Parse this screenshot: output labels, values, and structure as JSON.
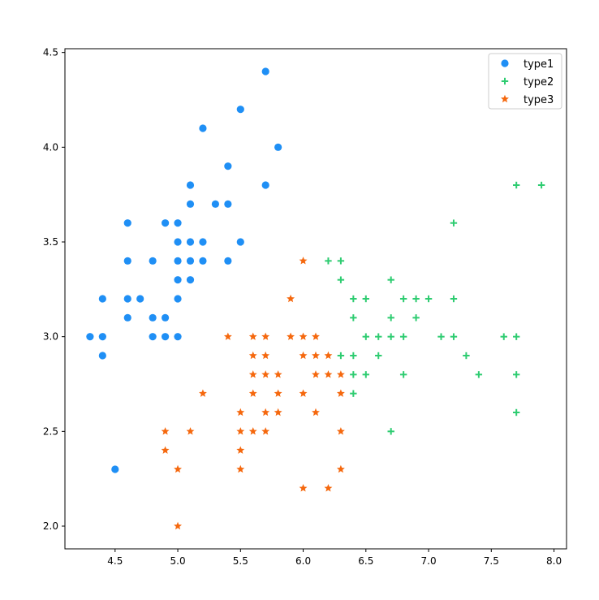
{
  "chart_data": {
    "type": "scatter",
    "title": "",
    "xlabel": "",
    "ylabel": "",
    "xlim": [
      4.1,
      8.1
    ],
    "ylim": [
      1.88,
      4.52
    ],
    "xticks": [
      "4.5",
      "5.0",
      "5.5",
      "6.0",
      "6.5",
      "7.0",
      "7.5",
      "8.0"
    ],
    "yticks": [
      "2.0",
      "2.5",
      "3.0",
      "3.5",
      "4.0",
      "4.5"
    ],
    "grid": false,
    "legend_position": "top-right",
    "series": [
      {
        "name": "type1",
        "marker": "circle",
        "color": "#1f8ff5",
        "points": [
          [
            5.7,
            4.4
          ],
          [
            5.5,
            4.2
          ],
          [
            5.2,
            4.1
          ],
          [
            5.8,
            4.0
          ],
          [
            5.4,
            3.9
          ],
          [
            5.1,
            3.8
          ],
          [
            5.7,
            3.8
          ],
          [
            5.1,
            3.7
          ],
          [
            5.3,
            3.7
          ],
          [
            5.4,
            3.7
          ],
          [
            4.6,
            3.6
          ],
          [
            4.9,
            3.6
          ],
          [
            5.0,
            3.6
          ],
          [
            5.0,
            3.5
          ],
          [
            5.1,
            3.5
          ],
          [
            5.2,
            3.5
          ],
          [
            5.5,
            3.5
          ],
          [
            4.6,
            3.4
          ],
          [
            4.8,
            3.4
          ],
          [
            5.0,
            3.4
          ],
          [
            5.1,
            3.4
          ],
          [
            5.2,
            3.4
          ],
          [
            5.4,
            3.4
          ],
          [
            5.0,
            3.3
          ],
          [
            5.1,
            3.3
          ],
          [
            4.4,
            3.2
          ],
          [
            4.6,
            3.2
          ],
          [
            4.7,
            3.2
          ],
          [
            5.0,
            3.2
          ],
          [
            4.6,
            3.1
          ],
          [
            4.8,
            3.1
          ],
          [
            4.9,
            3.1
          ],
          [
            4.3,
            3.0
          ],
          [
            4.4,
            3.0
          ],
          [
            4.8,
            3.0
          ],
          [
            4.9,
            3.0
          ],
          [
            5.0,
            3.0
          ],
          [
            4.4,
            2.9
          ],
          [
            4.5,
            2.3
          ]
        ]
      },
      {
        "name": "type2",
        "marker": "plus",
        "color": "#2ecc71",
        "points": [
          [
            7.7,
            3.8
          ],
          [
            7.9,
            3.8
          ],
          [
            7.2,
            3.6
          ],
          [
            6.2,
            3.4
          ],
          [
            6.3,
            3.4
          ],
          [
            6.3,
            3.3
          ],
          [
            6.7,
            3.3
          ],
          [
            6.4,
            3.2
          ],
          [
            6.5,
            3.2
          ],
          [
            6.8,
            3.2
          ],
          [
            6.9,
            3.2
          ],
          [
            7.0,
            3.2
          ],
          [
            7.2,
            3.2
          ],
          [
            6.4,
            3.1
          ],
          [
            6.7,
            3.1
          ],
          [
            6.9,
            3.1
          ],
          [
            6.5,
            3.0
          ],
          [
            6.6,
            3.0
          ],
          [
            6.7,
            3.0
          ],
          [
            6.8,
            3.0
          ],
          [
            7.1,
            3.0
          ],
          [
            7.2,
            3.0
          ],
          [
            7.6,
            3.0
          ],
          [
            7.7,
            3.0
          ],
          [
            6.3,
            2.9
          ],
          [
            6.4,
            2.9
          ],
          [
            6.6,
            2.9
          ],
          [
            7.3,
            2.9
          ],
          [
            6.4,
            2.8
          ],
          [
            6.5,
            2.8
          ],
          [
            6.8,
            2.8
          ],
          [
            7.4,
            2.8
          ],
          [
            7.7,
            2.8
          ],
          [
            6.4,
            2.7
          ],
          [
            7.7,
            2.6
          ],
          [
            6.7,
            2.5
          ]
        ]
      },
      {
        "name": "type3",
        "marker": "star",
        "color": "#f5680e",
        "points": [
          [
            6.0,
            3.4
          ],
          [
            5.9,
            3.2
          ],
          [
            5.4,
            3.0
          ],
          [
            5.6,
            3.0
          ],
          [
            5.7,
            3.0
          ],
          [
            5.9,
            3.0
          ],
          [
            6.0,
            3.0
          ],
          [
            6.1,
            3.0
          ],
          [
            5.6,
            2.9
          ],
          [
            5.7,
            2.9
          ],
          [
            6.0,
            2.9
          ],
          [
            6.1,
            2.9
          ],
          [
            6.2,
            2.9
          ],
          [
            5.6,
            2.8
          ],
          [
            5.7,
            2.8
          ],
          [
            5.8,
            2.8
          ],
          [
            6.1,
            2.8
          ],
          [
            6.2,
            2.8
          ],
          [
            6.3,
            2.8
          ],
          [
            5.2,
            2.7
          ],
          [
            5.6,
            2.7
          ],
          [
            5.8,
            2.7
          ],
          [
            6.0,
            2.7
          ],
          [
            6.3,
            2.7
          ],
          [
            5.5,
            2.6
          ],
          [
            5.7,
            2.6
          ],
          [
            5.8,
            2.6
          ],
          [
            6.1,
            2.6
          ],
          [
            4.9,
            2.5
          ],
          [
            5.1,
            2.5
          ],
          [
            5.5,
            2.5
          ],
          [
            5.6,
            2.5
          ],
          [
            5.7,
            2.5
          ],
          [
            6.3,
            2.5
          ],
          [
            4.9,
            2.4
          ],
          [
            5.5,
            2.4
          ],
          [
            5.0,
            2.3
          ],
          [
            5.5,
            2.3
          ],
          [
            6.3,
            2.3
          ],
          [
            6.0,
            2.2
          ],
          [
            6.2,
            2.2
          ],
          [
            5.0,
            2.0
          ]
        ]
      }
    ]
  }
}
